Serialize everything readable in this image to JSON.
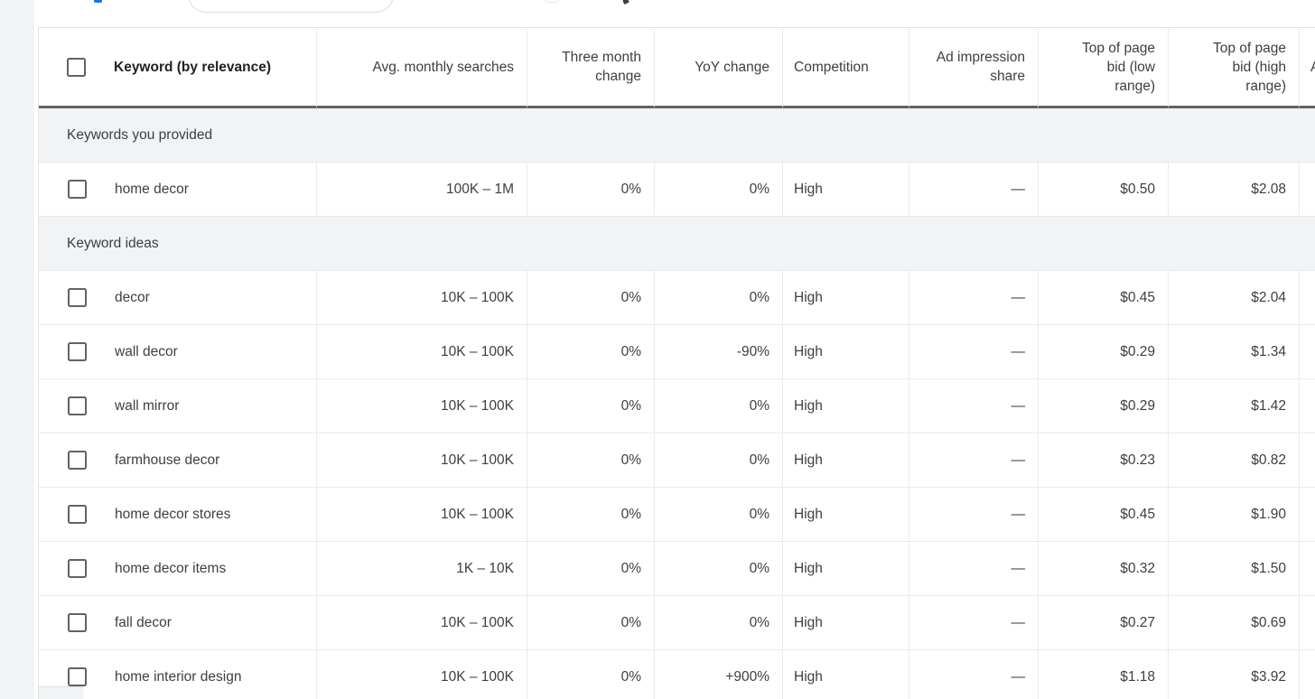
{
  "colors": {
    "accent_blue": "#1a73e8",
    "section_band": "#f1f3f4",
    "header_underline": "#5f6368"
  },
  "table": {
    "headers": {
      "keyword": "Keyword (by relevance)",
      "avg": "Avg. monthly searches",
      "three_month": "Three month\nchange",
      "yoy": "YoY change",
      "competition": "Competition",
      "ad_impression": "Ad impression\nshare",
      "bid_low": "Top of page\nbid (low\nrange)",
      "bid_high": "Top of page\nbid (high\nrange)",
      "col9": "A"
    },
    "sections": [
      {
        "label": "Keywords you provided",
        "rows": [
          {
            "keyword": "home decor",
            "avg": "100K – 1M",
            "three_month": "0%",
            "yoy": "0%",
            "competition": "High",
            "ad_impression": "—",
            "bid_low": "$0.50",
            "bid_high": "$2.08"
          }
        ]
      },
      {
        "label": "Keyword ideas",
        "rows": [
          {
            "keyword": "decor",
            "avg": "10K – 100K",
            "three_month": "0%",
            "yoy": "0%",
            "competition": "High",
            "ad_impression": "—",
            "bid_low": "$0.45",
            "bid_high": "$2.04"
          },
          {
            "keyword": "wall decor",
            "avg": "10K – 100K",
            "three_month": "0%",
            "yoy": "-90%",
            "competition": "High",
            "ad_impression": "—",
            "bid_low": "$0.29",
            "bid_high": "$1.34"
          },
          {
            "keyword": "wall mirror",
            "avg": "10K – 100K",
            "three_month": "0%",
            "yoy": "0%",
            "competition": "High",
            "ad_impression": "—",
            "bid_low": "$0.29",
            "bid_high": "$1.42"
          },
          {
            "keyword": "farmhouse decor",
            "avg": "10K – 100K",
            "three_month": "0%",
            "yoy": "0%",
            "competition": "High",
            "ad_impression": "—",
            "bid_low": "$0.23",
            "bid_high": "$0.82"
          },
          {
            "keyword": "home decor stores",
            "avg": "10K – 100K",
            "three_month": "0%",
            "yoy": "0%",
            "competition": "High",
            "ad_impression": "—",
            "bid_low": "$0.45",
            "bid_high": "$1.90"
          },
          {
            "keyword": "home decor items",
            "avg": "1K – 10K",
            "three_month": "0%",
            "yoy": "0%",
            "competition": "High",
            "ad_impression": "—",
            "bid_low": "$0.32",
            "bid_high": "$1.50"
          },
          {
            "keyword": "fall decor",
            "avg": "10K – 100K",
            "three_month": "0%",
            "yoy": "0%",
            "competition": "High",
            "ad_impression": "—",
            "bid_low": "$0.27",
            "bid_high": "$0.69"
          },
          {
            "keyword": "home interior design",
            "avg": "10K – 100K",
            "three_month": "0%",
            "yoy": "+900%",
            "competition": "High",
            "ad_impression": "—",
            "bid_low": "$1.18",
            "bid_high": "$3.92"
          }
        ]
      }
    ]
  }
}
